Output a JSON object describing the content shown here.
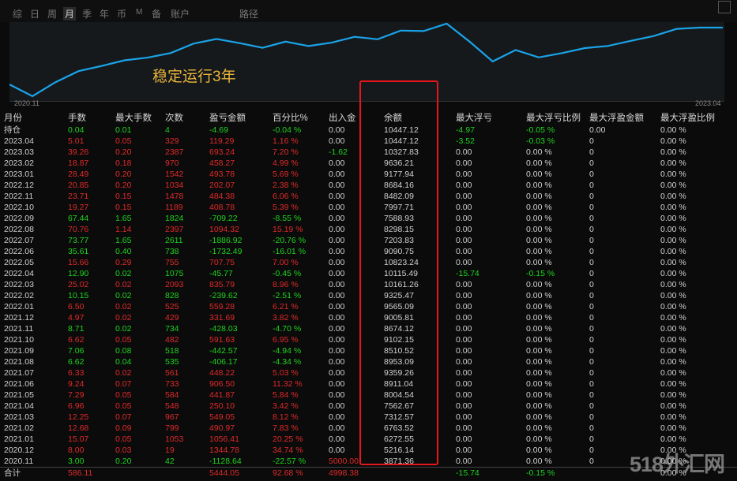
{
  "toolbar": {
    "tabs": [
      "综",
      "日",
      "周",
      "月",
      "季",
      "年",
      "币",
      "M",
      "备",
      "账户"
    ],
    "active_tab": "月",
    "path_label": "路径"
  },
  "chart": {
    "annotation": "稳定运行3年",
    "start_label": "2020.11",
    "end_label": "2023.04",
    "line_color": "#1aa3e8",
    "balance_series": [
      5000,
      3871.36,
      5216.14,
      6272.55,
      6763.52,
      7312.57,
      7562.67,
      8004.54,
      8911.04,
      9359.26,
      8953.09,
      8510.52,
      9102.15,
      8674.12,
      9005.81,
      9565.09,
      9325.47,
      10161.26,
      10115.49,
      10823.24,
      9090.75,
      7203.83,
      8298.15,
      7588.93,
      7997.71,
      8482.09,
      8684.16,
      9177.94,
      9636.21,
      10327.83,
      10447.12,
      10447.12
    ]
  },
  "table": {
    "headers": [
      "月份",
      "手数",
      "最大手数",
      "次数",
      "盈亏金额",
      "百分比%",
      "出入金",
      "余额",
      "最大浮亏",
      "最大浮亏比例",
      "最大浮盈金额",
      "最大浮盈比例"
    ],
    "rows": [
      {
        "cells": [
          "持仓",
          "0.04",
          "0.01",
          "4",
          "-4.69",
          "-0.04 %",
          "0.00",
          "10447.12",
          "-4.97",
          "-0.05 %",
          "0.00",
          "0.00 %"
        ],
        "tone": "grn",
        "fl_tone": "grn"
      },
      {
        "cells": [
          "2023.04",
          "5.01",
          "0.05",
          "329",
          "119.29",
          "1.16 %",
          "0.00",
          "10447.12",
          "-3.52",
          "-0.03 %",
          "0",
          "0.00 %"
        ],
        "tone": "red",
        "fl_tone": "grn"
      },
      {
        "cells": [
          "2023.03",
          "39.26",
          "0.20",
          "2387",
          "693.24",
          "7.20 %",
          "-1.62",
          "10327.83",
          "0.00",
          "0.00 %",
          "0",
          "0.00 %"
        ],
        "tone": "red",
        "fl_tone": "wht",
        "io_tone": "grn"
      },
      {
        "cells": [
          "2023.02",
          "18.87",
          "0.18",
          "970",
          "458.27",
          "4.99 %",
          "0.00",
          "9636.21",
          "0.00",
          "0.00 %",
          "0",
          "0.00 %"
        ],
        "tone": "red",
        "fl_tone": "wht"
      },
      {
        "cells": [
          "2023.01",
          "28.49",
          "0.20",
          "1542",
          "493.78",
          "5.69 %",
          "0.00",
          "9177.94",
          "0.00",
          "0.00 %",
          "0",
          "0.00 %"
        ],
        "tone": "red",
        "fl_tone": "wht"
      },
      {
        "cells": [
          "2022.12",
          "20.85",
          "0.20",
          "1034",
          "202.07",
          "2.38 %",
          "0.00",
          "8684.16",
          "0.00",
          "0.00 %",
          "0",
          "0.00 %"
        ],
        "tone": "red",
        "fl_tone": "wht"
      },
      {
        "cells": [
          "2022.11",
          "23.71",
          "0.15",
          "1478",
          "484.38",
          "6.06 %",
          "0.00",
          "8482.09",
          "0.00",
          "0.00 %",
          "0",
          "0.00 %"
        ],
        "tone": "red",
        "fl_tone": "wht"
      },
      {
        "cells": [
          "2022.10",
          "19.27",
          "0.15",
          "1189",
          "408.78",
          "5.39 %",
          "0.00",
          "7997.71",
          "0.00",
          "0.00 %",
          "0",
          "0.00 %"
        ],
        "tone": "red",
        "fl_tone": "wht"
      },
      {
        "cells": [
          "2022.09",
          "67.44",
          "1.65",
          "1824",
          "-709.22",
          "-8.55 %",
          "0.00",
          "7588.93",
          "0.00",
          "0.00 %",
          "0",
          "0.00 %"
        ],
        "tone": "grn",
        "fl_tone": "wht"
      },
      {
        "cells": [
          "2022.08",
          "70.76",
          "1.14",
          "2397",
          "1094.32",
          "15.19 %",
          "0.00",
          "8298.15",
          "0.00",
          "0.00 %",
          "0",
          "0.00 %"
        ],
        "tone": "red",
        "fl_tone": "wht"
      },
      {
        "cells": [
          "2022.07",
          "73.77",
          "1.65",
          "2611",
          "-1886.92",
          "-20.76 %",
          "0.00",
          "7203.83",
          "0.00",
          "0.00 %",
          "0",
          "0.00 %"
        ],
        "tone": "grn",
        "fl_tone": "wht"
      },
      {
        "cells": [
          "2022.06",
          "35.61",
          "0.40",
          "738",
          "-1732.49",
          "-16.01 %",
          "0.00",
          "9090.75",
          "0.00",
          "0.00 %",
          "0",
          "0.00 %"
        ],
        "tone": "grn",
        "fl_tone": "wht"
      },
      {
        "cells": [
          "2022.05",
          "15.66",
          "0.29",
          "755",
          "707.75",
          "7.00 %",
          "0.00",
          "10823.24",
          "0.00",
          "0.00 %",
          "0",
          "0.00 %"
        ],
        "tone": "red",
        "fl_tone": "wht"
      },
      {
        "cells": [
          "2022.04",
          "12.90",
          "0.02",
          "1075",
          "-45.77",
          "-0.45 %",
          "0.00",
          "10115.49",
          "-15.74",
          "-0.15 %",
          "0",
          "0.00 %"
        ],
        "tone": "grn",
        "fl_tone": "grn"
      },
      {
        "cells": [
          "2022.03",
          "25.02",
          "0.02",
          "2093",
          "835.79",
          "8.96 %",
          "0.00",
          "10161.26",
          "0.00",
          "0.00 %",
          "0",
          "0.00 %"
        ],
        "tone": "red",
        "fl_tone": "wht"
      },
      {
        "cells": [
          "2022.02",
          "10.15",
          "0.02",
          "828",
          "-239.62",
          "-2.51 %",
          "0.00",
          "9325.47",
          "0.00",
          "0.00 %",
          "0",
          "0.00 %"
        ],
        "tone": "grn",
        "fl_tone": "wht"
      },
      {
        "cells": [
          "2022.01",
          "6.50",
          "0.02",
          "525",
          "559.28",
          "6.21 %",
          "0.00",
          "9565.09",
          "0.00",
          "0.00 %",
          "0",
          "0.00 %"
        ],
        "tone": "red",
        "fl_tone": "wht"
      },
      {
        "cells": [
          "2021.12",
          "4.97",
          "0.02",
          "429",
          "331.69",
          "3.82 %",
          "0.00",
          "9005.81",
          "0.00",
          "0.00 %",
          "0",
          "0.00 %"
        ],
        "tone": "red",
        "fl_tone": "wht"
      },
      {
        "cells": [
          "2021.11",
          "8.71",
          "0.02",
          "734",
          "-428.03",
          "-4.70 %",
          "0.00",
          "8674.12",
          "0.00",
          "0.00 %",
          "0",
          "0.00 %"
        ],
        "tone": "grn",
        "fl_tone": "wht"
      },
      {
        "cells": [
          "2021.10",
          "6.62",
          "0.05",
          "482",
          "591.63",
          "6.95 %",
          "0.00",
          "9102.15",
          "0.00",
          "0.00 %",
          "0",
          "0.00 %"
        ],
        "tone": "red",
        "fl_tone": "wht"
      },
      {
        "cells": [
          "2021.09",
          "7.06",
          "0.08",
          "518",
          "-442.57",
          "-4.94 %",
          "0.00",
          "8510.52",
          "0.00",
          "0.00 %",
          "0",
          "0.00 %"
        ],
        "tone": "grn",
        "fl_tone": "wht"
      },
      {
        "cells": [
          "2021.08",
          "6.62",
          "0.04",
          "535",
          "-406.17",
          "-4.34 %",
          "0.00",
          "8953.09",
          "0.00",
          "0.00 %",
          "0",
          "0.00 %"
        ],
        "tone": "grn",
        "fl_tone": "wht"
      },
      {
        "cells": [
          "2021.07",
          "6.33",
          "0.02",
          "561",
          "448.22",
          "5.03 %",
          "0.00",
          "9359.26",
          "0.00",
          "0.00 %",
          "0",
          "0.00 %"
        ],
        "tone": "red",
        "fl_tone": "wht"
      },
      {
        "cells": [
          "2021.06",
          "9.24",
          "0.07",
          "733",
          "906.50",
          "11.32 %",
          "0.00",
          "8911.04",
          "0.00",
          "0.00 %",
          "0",
          "0.00 %"
        ],
        "tone": "red",
        "fl_tone": "wht"
      },
      {
        "cells": [
          "2021.05",
          "7.29",
          "0.05",
          "584",
          "441.87",
          "5.84 %",
          "0.00",
          "8004.54",
          "0.00",
          "0.00 %",
          "0",
          "0.00 %"
        ],
        "tone": "red",
        "fl_tone": "wht"
      },
      {
        "cells": [
          "2021.04",
          "6.96",
          "0.05",
          "548",
          "250.10",
          "3.42 %",
          "0.00",
          "7562.67",
          "0.00",
          "0.00 %",
          "0",
          "0.00 %"
        ],
        "tone": "red",
        "fl_tone": "wht"
      },
      {
        "cells": [
          "2021.03",
          "12.25",
          "0.07",
          "967",
          "549.05",
          "8.12 %",
          "0.00",
          "7312.57",
          "0.00",
          "0.00 %",
          "0",
          "0.00 %"
        ],
        "tone": "red",
        "fl_tone": "wht"
      },
      {
        "cells": [
          "2021.02",
          "12.68",
          "0.09",
          "799",
          "490.97",
          "7.83 %",
          "0.00",
          "6763.52",
          "0.00",
          "0.00 %",
          "0",
          "0.00 %"
        ],
        "tone": "red",
        "fl_tone": "wht"
      },
      {
        "cells": [
          "2021.01",
          "15.07",
          "0.05",
          "1053",
          "1056.41",
          "20.25 %",
          "0.00",
          "6272.55",
          "0.00",
          "0.00 %",
          "0",
          "0.00 %"
        ],
        "tone": "red",
        "fl_tone": "wht"
      },
      {
        "cells": [
          "2020.12",
          "8.00",
          "0.03",
          "19",
          "1344.78",
          "34.74 %",
          "0.00",
          "5216.14",
          "0.00",
          "0.00 %",
          "0",
          "0.00 %"
        ],
        "tone": "red",
        "fl_tone": "wht"
      },
      {
        "cells": [
          "2020.11",
          "3.00",
          "0.20",
          "42",
          "-1128.64",
          "-22.57 %",
          "5000.00",
          "3871.36",
          "0.00",
          "0.00 %",
          "0",
          "0.00 %"
        ],
        "tone": "grn",
        "fl_tone": "wht",
        "io_tone": "red"
      }
    ],
    "total": {
      "cells": [
        "合计",
        "586.11",
        "",
        "",
        "5444.05",
        "92.68 %",
        "4998.38",
        "",
        "-15.74",
        "-0.15 %",
        "",
        "0.00 %"
      ]
    }
  },
  "watermark": "518外汇网",
  "colors": {
    "red": "#e02a2a",
    "green": "#1ed41e",
    "highlight": "#e3161c",
    "annotation": "#e8b43a"
  }
}
